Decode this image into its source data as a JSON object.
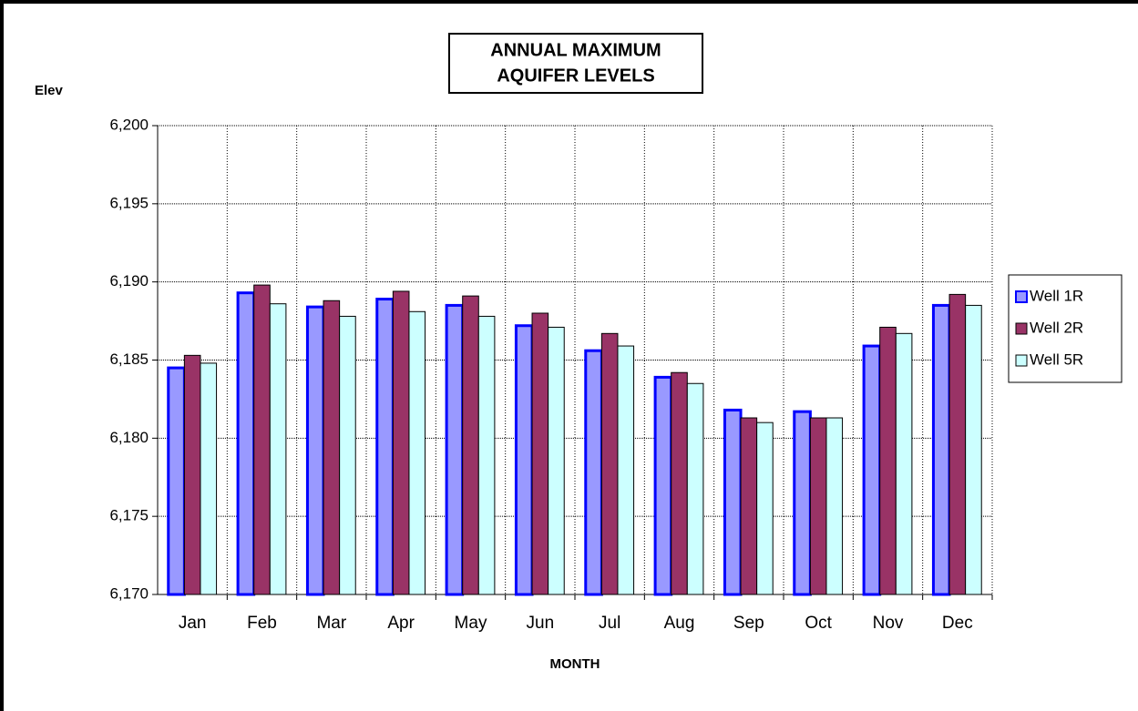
{
  "chart_data": {
    "type": "bar",
    "title": [
      "ANNUAL MAXIMUM",
      "AQUIFER LEVELS"
    ],
    "y_label": "Elev",
    "x_label": "MONTH",
    "categories": [
      "Jan",
      "Feb",
      "Mar",
      "Apr",
      "May",
      "Jun",
      "Jul",
      "Aug",
      "Sep",
      "Oct",
      "Nov",
      "Dec"
    ],
    "series": [
      {
        "name": "Well 1R",
        "color": "#9999ff",
        "border": "#0000ff",
        "values": [
          6184.5,
          6189.3,
          6188.4,
          6188.9,
          6188.5,
          6187.2,
          6185.6,
          6183.9,
          6181.8,
          6181.7,
          6185.9,
          6188.5
        ]
      },
      {
        "name": "Well 2R",
        "color": "#993366",
        "border": "#000000",
        "values": [
          6185.3,
          6189.8,
          6188.8,
          6189.4,
          6189.1,
          6188.0,
          6186.7,
          6184.2,
          6181.3,
          6181.3,
          6187.1,
          6189.2
        ]
      },
      {
        "name": "Well 5R",
        "color": "#ccffff",
        "border": "#000000",
        "values": [
          6184.8,
          6188.6,
          6187.8,
          6188.1,
          6187.8,
          6187.1,
          6185.9,
          6183.5,
          6181.0,
          6181.3,
          6186.7,
          6188.5
        ]
      }
    ],
    "ylim": [
      6170,
      6200
    ],
    "yticks": [
      {
        "value": 6170,
        "label": "6,170"
      },
      {
        "value": 6175,
        "label": "6,175"
      },
      {
        "value": 6180,
        "label": "6,180"
      },
      {
        "value": 6185,
        "label": "6,185"
      },
      {
        "value": 6190,
        "label": "6,190"
      },
      {
        "value": 6195,
        "label": "6,195"
      },
      {
        "value": 6200,
        "label": "6,200"
      }
    ],
    "grid": true,
    "legend": "right"
  }
}
